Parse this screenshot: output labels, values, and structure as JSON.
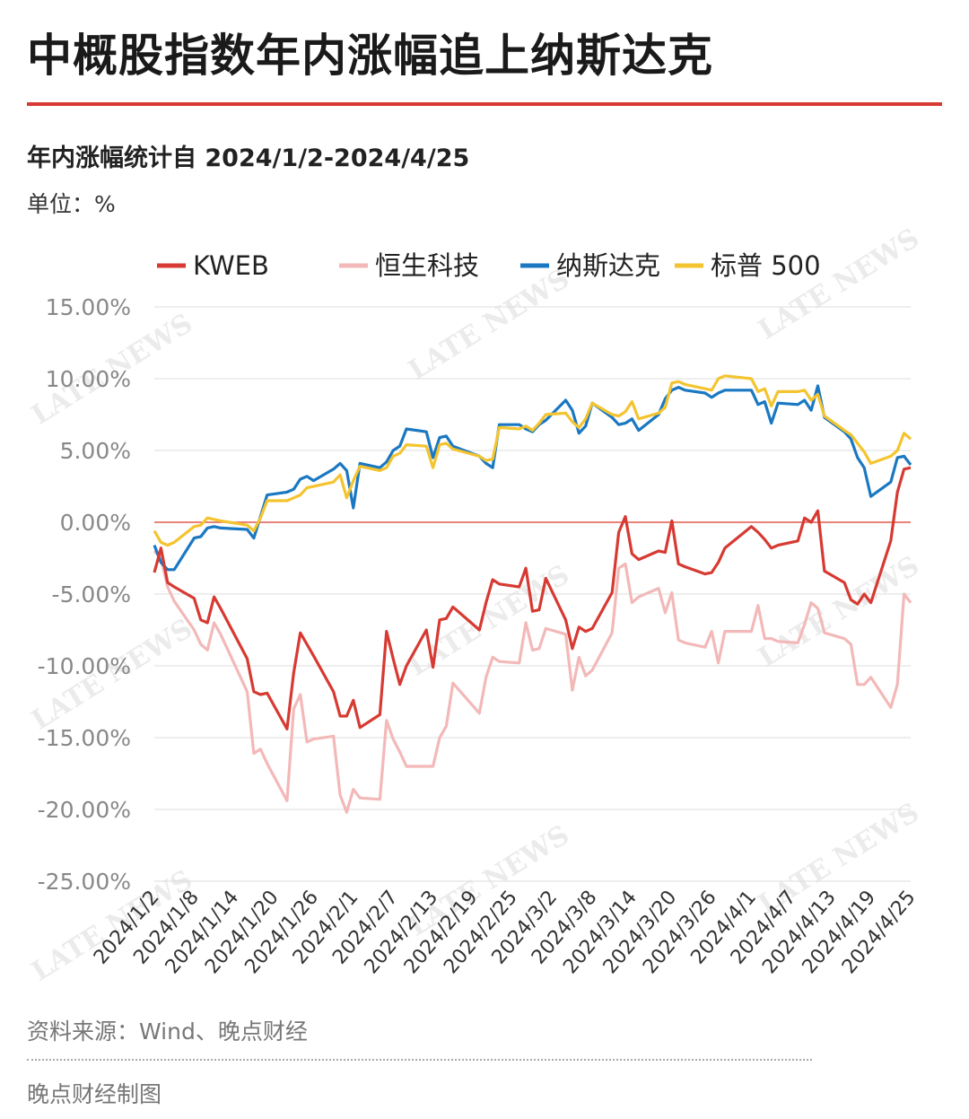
{
  "title": "中概股指数年内涨幅追上纳斯达克",
  "subtitle": "年内涨幅统计自 2024/1/2-2024/4/25",
  "unit_label": "单位：%",
  "source": "资料来源：Wind、晚点财经",
  "credit": "晚点财经制图",
  "watermark": "LATE NEWS",
  "chart_data": {
    "type": "line",
    "title": "中概股指数年内涨幅追上纳斯达克",
    "x": [
      "2024/1/2",
      "2024/1/3",
      "2024/1/4",
      "2024/1/5",
      "2024/1/8",
      "2024/1/9",
      "2024/1/10",
      "2024/1/11",
      "2024/1/12",
      "2024/1/16",
      "2024/1/17",
      "2024/1/18",
      "2024/1/19",
      "2024/1/22",
      "2024/1/23",
      "2024/1/24",
      "2024/1/25",
      "2024/1/26",
      "2024/1/29",
      "2024/1/30",
      "2024/1/31",
      "2024/2/1",
      "2024/2/2",
      "2024/2/5",
      "2024/2/6",
      "2024/2/7",
      "2024/2/8",
      "2024/2/9",
      "2024/2/12",
      "2024/2/13",
      "2024/2/14",
      "2024/2/15",
      "2024/2/16",
      "2024/2/20",
      "2024/2/21",
      "2024/2/22",
      "2024/2/23",
      "2024/2/26",
      "2024/2/27",
      "2024/2/28",
      "2024/2/29",
      "2024/3/1",
      "2024/3/4",
      "2024/3/5",
      "2024/3/6",
      "2024/3/7",
      "2024/3/8",
      "2024/3/11",
      "2024/3/12",
      "2024/3/13",
      "2024/3/14",
      "2024/3/15",
      "2024/3/18",
      "2024/3/19",
      "2024/3/20",
      "2024/3/21",
      "2024/3/22",
      "2024/3/25",
      "2024/3/26",
      "2024/3/27",
      "2024/3/28",
      "2024/4/1",
      "2024/4/2",
      "2024/4/3",
      "2024/4/4",
      "2024/4/5",
      "2024/4/8",
      "2024/4/9",
      "2024/4/10",
      "2024/4/11",
      "2024/4/12",
      "2024/4/15",
      "2024/4/16",
      "2024/4/17",
      "2024/4/18",
      "2024/4/19",
      "2024/4/22",
      "2024/4/23",
      "2024/4/24",
      "2024/4/25"
    ],
    "x_ticks": [
      "2024/1/2",
      "2024/1/8",
      "2024/1/14",
      "2024/1/20",
      "2024/1/26",
      "2024/2/1",
      "2024/2/7",
      "2024/2/13",
      "2024/2/19",
      "2024/2/25",
      "2024/3/2",
      "2024/3/8",
      "2024/3/14",
      "2024/3/20",
      "2024/3/26",
      "2024/4/1",
      "2024/4/7",
      "2024/4/13",
      "2024/4/19",
      "2024/4/25"
    ],
    "y_ticks": [
      15,
      10,
      5,
      0,
      -5,
      -10,
      -15,
      -20,
      -25
    ],
    "y_tick_labels": [
      "15.00%",
      "10.00%",
      "5.00%",
      "0.00%",
      "-5.00%",
      "-10.00%",
      "-15.00%",
      "-20.00%",
      "-25.00%"
    ],
    "ylim": [
      -25,
      15
    ],
    "grid": true,
    "legend_position": "top",
    "series": [
      {
        "name": "KWEB",
        "color": "#d63a32",
        "values": [
          -3.5,
          -1.8,
          -4.2,
          -4.5,
          -5.3,
          -6.8,
          -7.0,
          -5.2,
          -6.0,
          -9.5,
          -11.8,
          -12.0,
          -11.9,
          -14.4,
          -10.5,
          -7.7,
          -8.5,
          -9.3,
          -11.8,
          -13.5,
          -13.5,
          -12.4,
          -14.3,
          -13.4,
          -7.6,
          -9.5,
          -11.3,
          -10.0,
          -7.5,
          -10.1,
          -6.8,
          -6.7,
          -5.9,
          -7.5,
          -5.6,
          -4.0,
          -4.3,
          -4.5,
          -3.2,
          -6.2,
          -6.1,
          -3.9,
          -6.8,
          -8.8,
          -7.3,
          -7.6,
          -7.4,
          -4.9,
          -0.7,
          0.4,
          -2.2,
          -2.6,
          -2.0,
          -2.1,
          0.1,
          -2.9,
          -3.1,
          -3.6,
          -3.5,
          -2.8,
          -1.8,
          -0.3,
          -0.7,
          -1.2,
          -1.8,
          -1.6,
          -1.3,
          0.3,
          0.0,
          0.8,
          -3.4,
          -4.2,
          -5.4,
          -5.7,
          -5.0,
          -5.6,
          -1.3,
          2.1,
          3.7,
          3.8
        ]
      },
      {
        "name": "恒生科技",
        "color": "#f3b8b8",
        "values": [
          -2.0,
          -2.5,
          -4.5,
          -5.5,
          -7.5,
          -8.5,
          -8.9,
          -7.0,
          -7.8,
          -11.8,
          -16.1,
          -15.8,
          -16.8,
          -19.4,
          -13.0,
          -12.0,
          -15.3,
          -15.1,
          -14.9,
          -19.0,
          -20.2,
          -18.6,
          -19.2,
          -19.3,
          -13.8,
          -15.1,
          -16.0,
          -17.0,
          -17.0,
          -17.0,
          -15.0,
          -14.2,
          -11.2,
          -13.3,
          -10.8,
          -9.4,
          -9.7,
          -9.8,
          -7.0,
          -8.9,
          -8.8,
          -7.4,
          -7.8,
          -11.7,
          -9.4,
          -10.7,
          -10.3,
          -7.7,
          -3.2,
          -2.9,
          -5.6,
          -5.2,
          -4.6,
          -6.3,
          -4.9,
          -8.2,
          -8.4,
          -8.7,
          -7.6,
          -9.8,
          -7.6,
          -7.6,
          -5.8,
          -8.1,
          -8.1,
          -8.3,
          -8.4,
          -7.1,
          -5.6,
          -6.0,
          -7.7,
          -8.1,
          -8.5,
          -11.3,
          -11.3,
          -10.8,
          -12.9,
          -11.3,
          -5.0,
          -5.6
        ]
      },
      {
        "name": "纳斯达克",
        "color": "#1a78c2",
        "values": [
          -1.6,
          -2.8,
          -3.3,
          -3.3,
          -1.1,
          -1.0,
          -0.4,
          -0.3,
          -0.4,
          -0.5,
          -1.1,
          0.4,
          1.9,
          2.1,
          2.3,
          3.0,
          3.2,
          2.9,
          3.7,
          4.1,
          3.6,
          1.0,
          4.1,
          3.8,
          4.2,
          5.0,
          5.3,
          6.5,
          6.3,
          4.5,
          5.9,
          6.0,
          5.3,
          4.6,
          4.1,
          3.8,
          6.8,
          6.8,
          6.5,
          6.3,
          6.8,
          7.1,
          8.5,
          7.8,
          6.2,
          6.7,
          8.3,
          7.3,
          6.8,
          6.9,
          7.2,
          6.4,
          7.5,
          8.6,
          9.2,
          9.4,
          9.2,
          9.0,
          8.7,
          9.0,
          9.2,
          9.2,
          8.2,
          8.4,
          6.9,
          8.3,
          8.2,
          8.5,
          7.8,
          9.5,
          7.3,
          6.3,
          5.8,
          4.5,
          3.8,
          1.8,
          2.8,
          4.5,
          4.6,
          4.0
        ]
      },
      {
        "name": "标普 500",
        "color": "#f4c430",
        "values": [
          -0.6,
          -1.4,
          -1.6,
          -1.4,
          -0.3,
          -0.2,
          0.3,
          0.2,
          0.1,
          -0.2,
          -0.6,
          0.3,
          1.5,
          1.5,
          1.7,
          1.9,
          2.4,
          2.5,
          2.8,
          3.3,
          1.7,
          2.9,
          3.9,
          3.6,
          3.8,
          4.6,
          4.8,
          5.4,
          5.3,
          3.8,
          5.4,
          5.5,
          5.1,
          4.6,
          4.3,
          4.4,
          6.6,
          6.5,
          6.7,
          6.4,
          6.9,
          7.5,
          7.6,
          7.0,
          6.6,
          7.2,
          8.3,
          7.5,
          7.4,
          7.7,
          8.4,
          7.2,
          7.6,
          8.0,
          9.7,
          9.8,
          9.6,
          9.3,
          9.2,
          10.0,
          10.2,
          10.0,
          9.1,
          9.3,
          8.1,
          9.1,
          9.1,
          9.2,
          8.5,
          8.9,
          7.4,
          6.4,
          6.1,
          5.5,
          4.9,
          4.1,
          4.6,
          5.0,
          6.2,
          5.8
        ]
      }
    ]
  }
}
